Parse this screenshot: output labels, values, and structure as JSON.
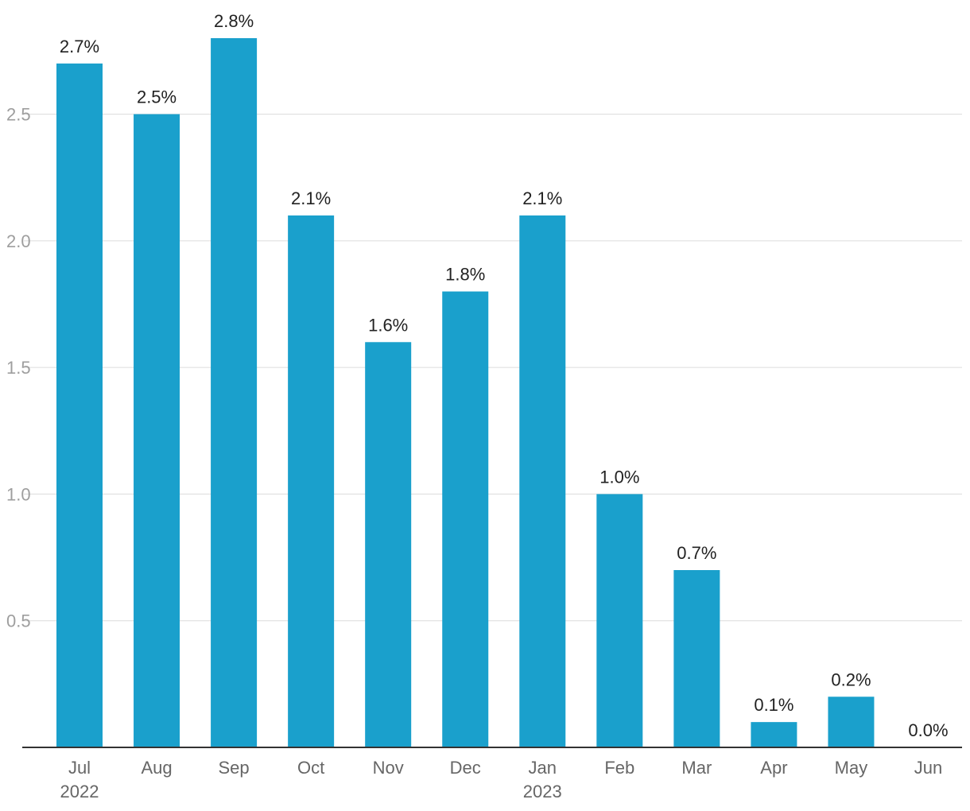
{
  "chart_data": {
    "type": "bar",
    "categories": [
      "Jul",
      "Aug",
      "Sep",
      "Oct",
      "Nov",
      "Dec",
      "Jan",
      "Feb",
      "Mar",
      "Apr",
      "May",
      "Jun"
    ],
    "category_sublabels": [
      "2022",
      "",
      "",
      "",
      "",
      "",
      "2023",
      "",
      "",
      "",
      "",
      ""
    ],
    "values": [
      2.7,
      2.5,
      2.8,
      2.1,
      1.6,
      1.8,
      2.1,
      1.0,
      0.7,
      0.1,
      0.2,
      0.0
    ],
    "data_labels": [
      "2.7%",
      "2.5%",
      "2.8%",
      "2.1%",
      "1.6%",
      "1.8%",
      "2.1%",
      "1.0%",
      "0.7%",
      "0.1%",
      "0.2%",
      "0.0%"
    ],
    "yticks": [
      0.5,
      1.0,
      1.5,
      2.0,
      2.5
    ],
    "ytick_labels": [
      "0.5",
      "1.0",
      "1.5",
      "2.0",
      "2.5"
    ],
    "ylim": [
      0,
      2.8
    ],
    "grid": true,
    "bar_color": "#1aa0cc"
  }
}
